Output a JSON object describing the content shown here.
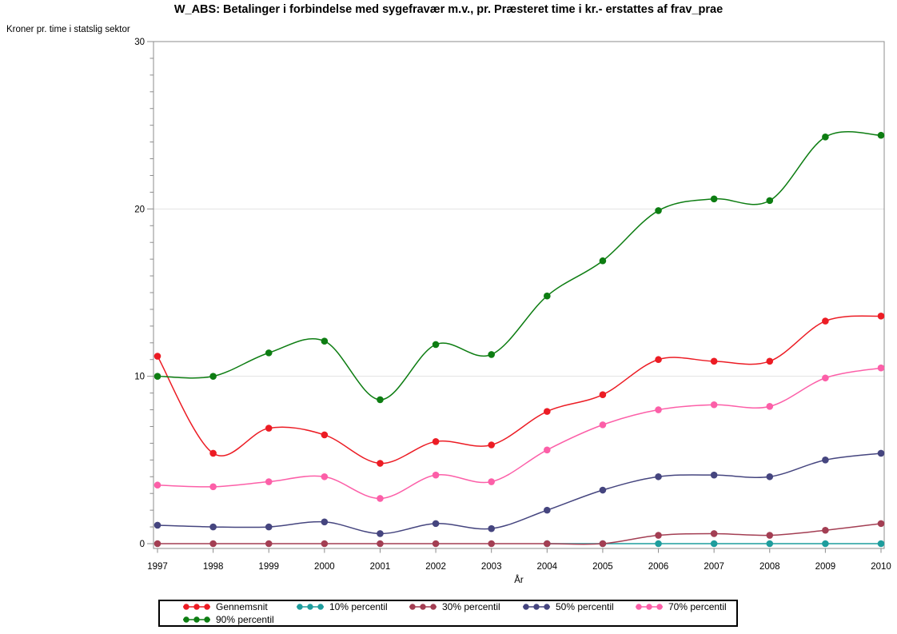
{
  "title": "W_ABS: Betalinger i forbindelse med sygefravær m.v., pr. Præsteret time i kr.- erstattes af frav_prae",
  "chart_data": {
    "type": "line",
    "title": "W_ABS: Betalinger i forbindelse med sygefravær m.v., pr. Præsteret time i kr.- erstattes af frav_prae",
    "xlabel": "År",
    "ylabel": "Kroner pr. time i statslig sektor",
    "x": [
      1997,
      1998,
      1999,
      2000,
      2001,
      2002,
      2003,
      2004,
      2005,
      2006,
      2007,
      2008,
      2009,
      2010
    ],
    "ylim": [
      0,
      30
    ],
    "yticks": [
      0,
      10,
      20,
      30
    ],
    "y_minor_tick_step": 1,
    "grid": "horizontal-major",
    "legend_position": "bottom-box",
    "line_style": "smooth-spline-with-dot-markers",
    "series": [
      {
        "name": "Gennemsnit",
        "color": "#ec1c24",
        "values": [
          11.2,
          5.4,
          6.9,
          6.5,
          4.8,
          6.1,
          5.9,
          7.9,
          8.9,
          11.0,
          10.9,
          10.9,
          13.3,
          13.6
        ]
      },
      {
        "name": "10% percentil",
        "color": "#1e9d9d",
        "values": [
          null,
          null,
          null,
          null,
          null,
          null,
          null,
          0,
          0,
          0,
          0,
          0,
          0,
          0
        ]
      },
      {
        "name": "30% percentil",
        "color": "#a33e53",
        "values": [
          0,
          0,
          0,
          0,
          0,
          0,
          0,
          0,
          0,
          0.5,
          0.6,
          0.5,
          0.8,
          1.2
        ]
      },
      {
        "name": "50% percentil",
        "color": "#45457f",
        "values": [
          1.1,
          1.0,
          1.0,
          1.3,
          0.6,
          1.2,
          0.9,
          2.0,
          3.2,
          4.0,
          4.1,
          4.0,
          5.0,
          5.4
        ]
      },
      {
        "name": "70% percentil",
        "color": "#fc5fa8",
        "values": [
          3.5,
          3.4,
          3.7,
          4.0,
          2.7,
          4.1,
          3.7,
          5.6,
          7.1,
          8.0,
          8.3,
          8.2,
          9.9,
          10.5
        ]
      },
      {
        "name": "90% percentil",
        "color": "#0d7d12",
        "values": [
          10.0,
          10.0,
          11.4,
          12.1,
          8.6,
          11.9,
          11.3,
          14.8,
          16.9,
          19.9,
          20.6,
          20.5,
          24.3,
          24.4
        ]
      }
    ]
  }
}
